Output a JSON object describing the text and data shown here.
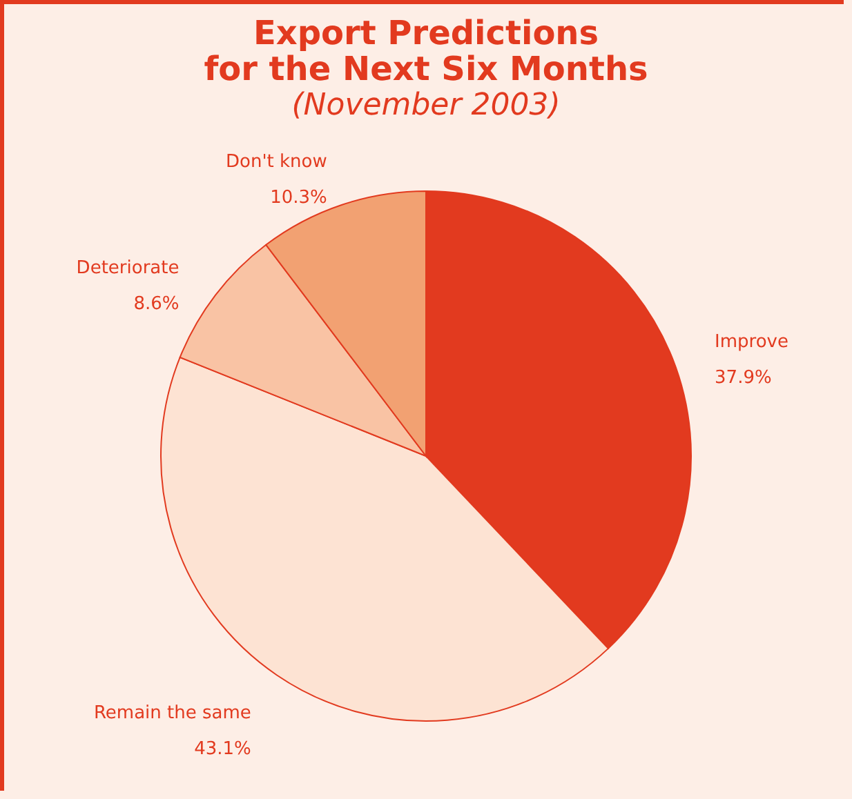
{
  "chart_data": {
    "type": "pie",
    "title": "Export Predictions for the Next Six Months",
    "subtitle": "(November 2003)",
    "categories": [
      "Improve",
      "Remain the same",
      "Deteriorate",
      "Don't know"
    ],
    "values": [
      37.9,
      43.1,
      8.6,
      10.3
    ],
    "colors": [
      "#e23a1f",
      "#fde3d3",
      "#f9c3a4",
      "#f2a172"
    ],
    "value_labels": [
      "37.9%",
      "43.1%",
      "8.6%",
      "10.3%"
    ]
  }
}
